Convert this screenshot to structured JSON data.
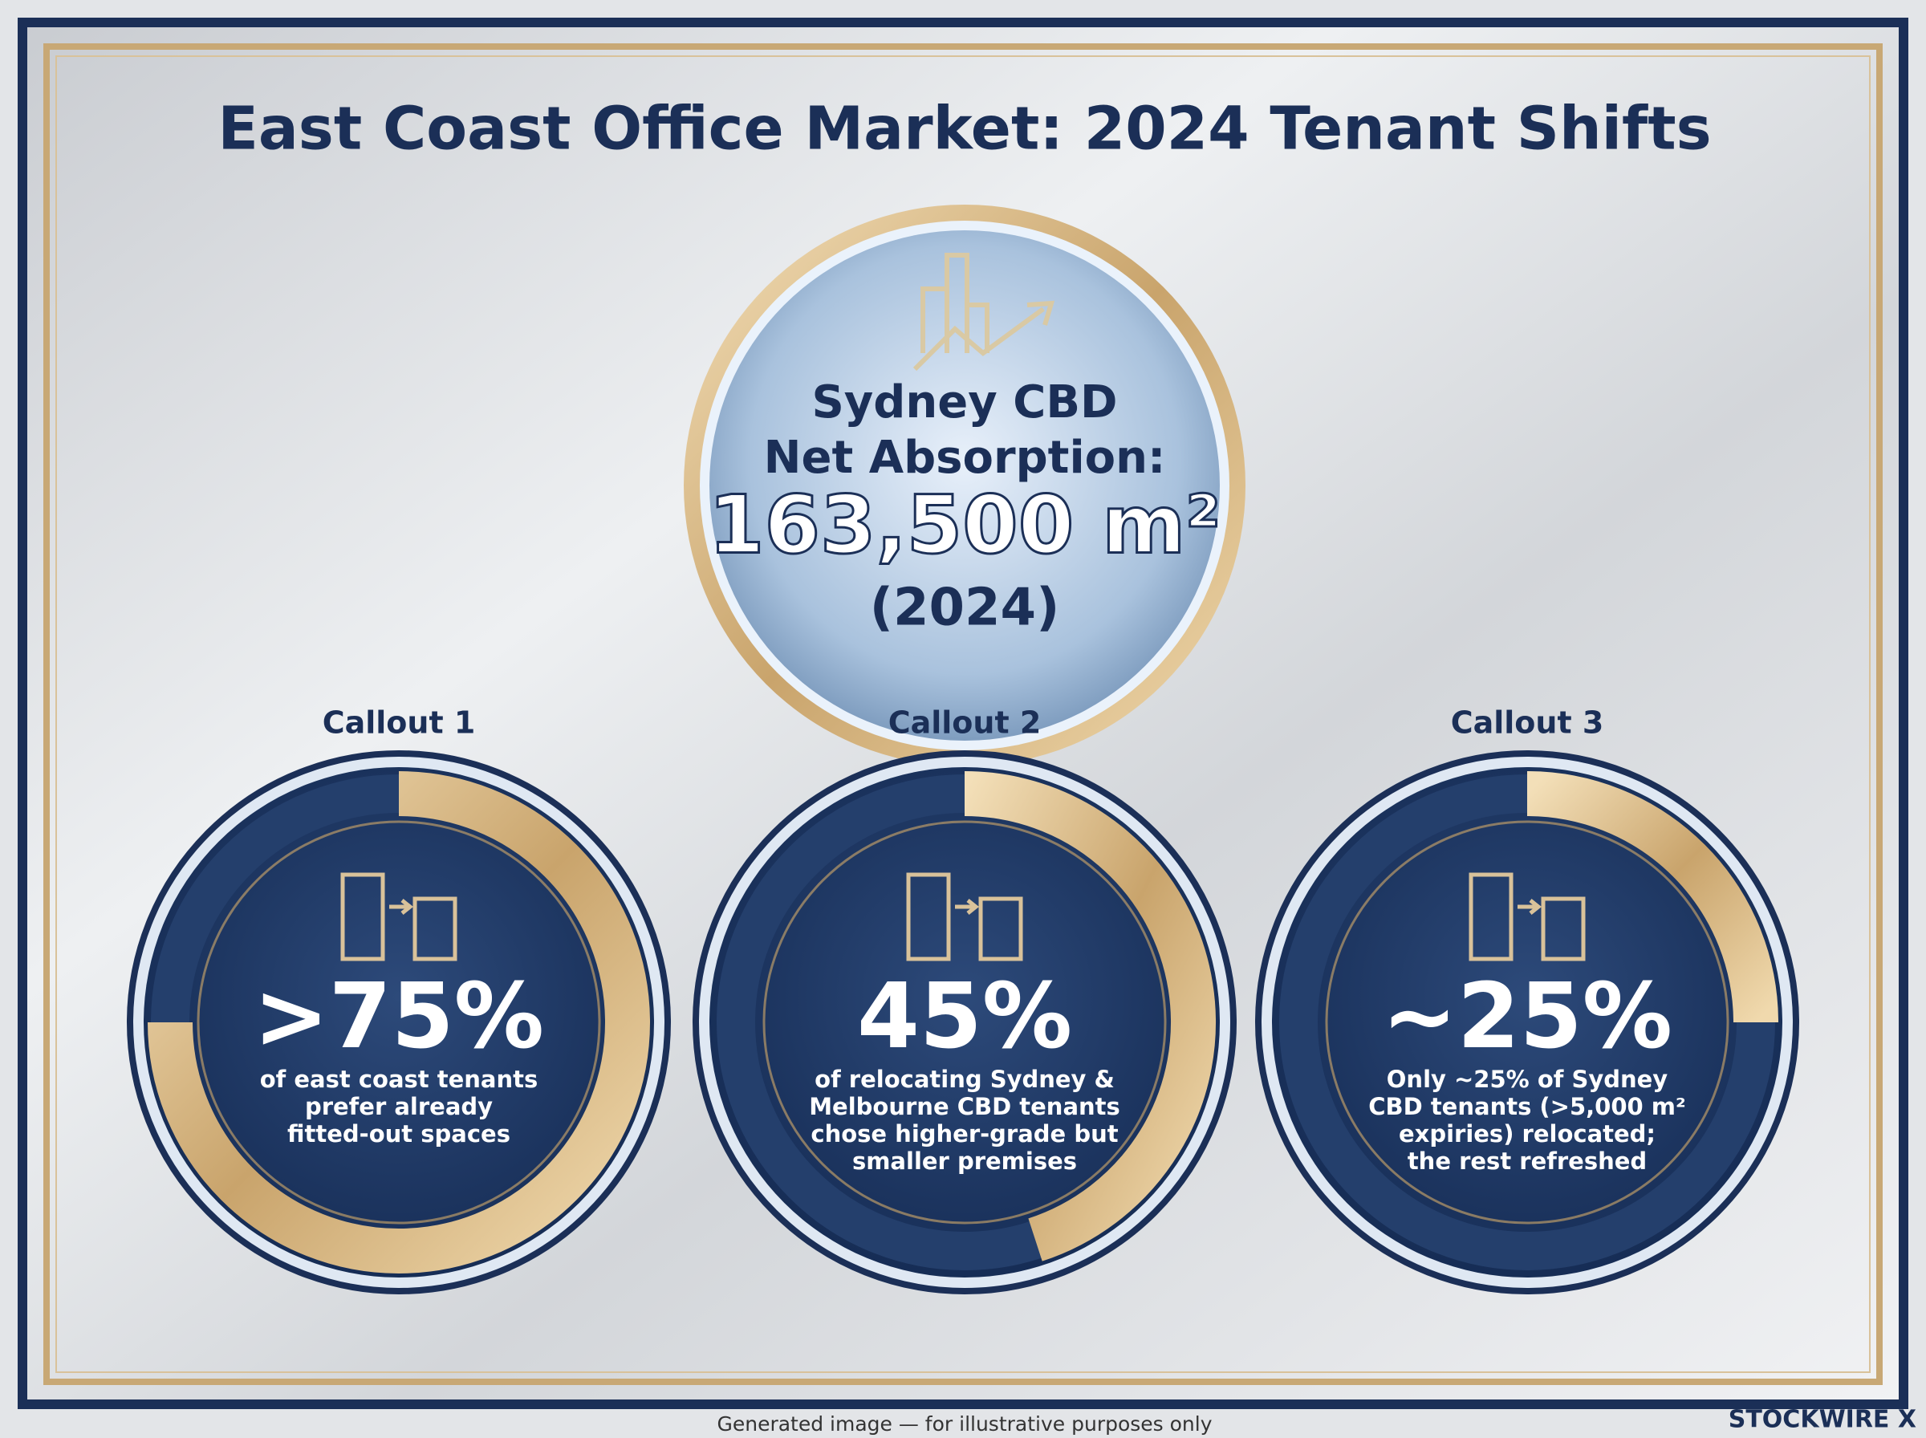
{
  "title": "East Coast Office Market: 2024 Tenant Shifts",
  "hero": {
    "lines": [
      "Sydney CBD",
      "Net Absorption:"
    ],
    "value": "163,500 m²",
    "period": "(2024)"
  },
  "callouts": [
    {
      "heading": "Callout 1",
      "value": 75,
      "label": ">75%",
      "text": [
        "of east coast tenants",
        "prefer already",
        "fitted-out spaces"
      ]
    },
    {
      "heading": "Callout 2",
      "value": 45,
      "label": "45%",
      "text": [
        "of relocating Sydney &",
        "Melbourne CBD tenants",
        "chose higher-grade but",
        "smaller premises"
      ]
    },
    {
      "heading": "Callout 3",
      "value": 25,
      "label": "~25%",
      "text": [
        "Only ~25% of Sydney",
        "CBD tenants (>5,000 m²",
        "expiries) relocated;",
        "the rest refreshed"
      ]
    }
  ],
  "footer": "Generated image — for illustrative purposes only",
  "brand": "STOCKWIRE X"
}
